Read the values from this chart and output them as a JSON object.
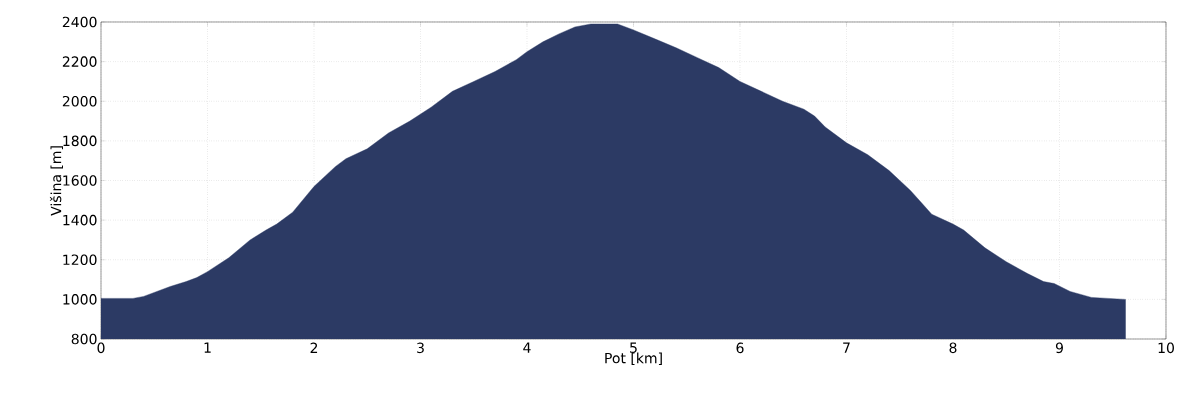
{
  "chart_data": {
    "type": "area",
    "xlabel": "Pot [km]",
    "ylabel": "Višina [m]",
    "x": [
      0,
      0.3,
      0.4,
      0.5,
      0.65,
      0.8,
      0.9,
      1.0,
      1.2,
      1.4,
      1.55,
      1.65,
      1.8,
      2.0,
      2.2,
      2.3,
      2.5,
      2.7,
      2.9,
      3.1,
      3.3,
      3.5,
      3.7,
      3.9,
      4.0,
      4.15,
      4.3,
      4.45,
      4.6,
      4.85,
      5.0,
      5.2,
      5.4,
      5.6,
      5.8,
      6.0,
      6.2,
      6.4,
      6.6,
      6.7,
      6.8,
      7.0,
      7.2,
      7.4,
      7.6,
      7.7,
      7.8,
      8.0,
      8.1,
      8.3,
      8.5,
      8.7,
      8.85,
      8.95,
      9.1,
      9.3,
      9.62
    ],
    "values": [
      1005,
      1005,
      1015,
      1035,
      1065,
      1090,
      1110,
      1140,
      1210,
      1300,
      1350,
      1380,
      1440,
      1570,
      1670,
      1710,
      1760,
      1840,
      1900,
      1970,
      2050,
      2100,
      2150,
      2210,
      2250,
      2300,
      2340,
      2375,
      2390,
      2390,
      2360,
      2315,
      2270,
      2220,
      2170,
      2100,
      2050,
      2000,
      1960,
      1925,
      1870,
      1790,
      1730,
      1650,
      1550,
      1490,
      1430,
      1380,
      1350,
      1260,
      1190,
      1130,
      1090,
      1080,
      1040,
      1010,
      1000
    ],
    "color": "#2c3a64",
    "xlim": [
      0,
      10
    ],
    "ylim": [
      800,
      2400
    ],
    "xticks": [
      0,
      1,
      2,
      3,
      4,
      5,
      6,
      7,
      8,
      9,
      10
    ],
    "yticks": [
      800,
      1000,
      1200,
      1400,
      1600,
      1800,
      2000,
      2200,
      2400
    ],
    "grid": true
  }
}
